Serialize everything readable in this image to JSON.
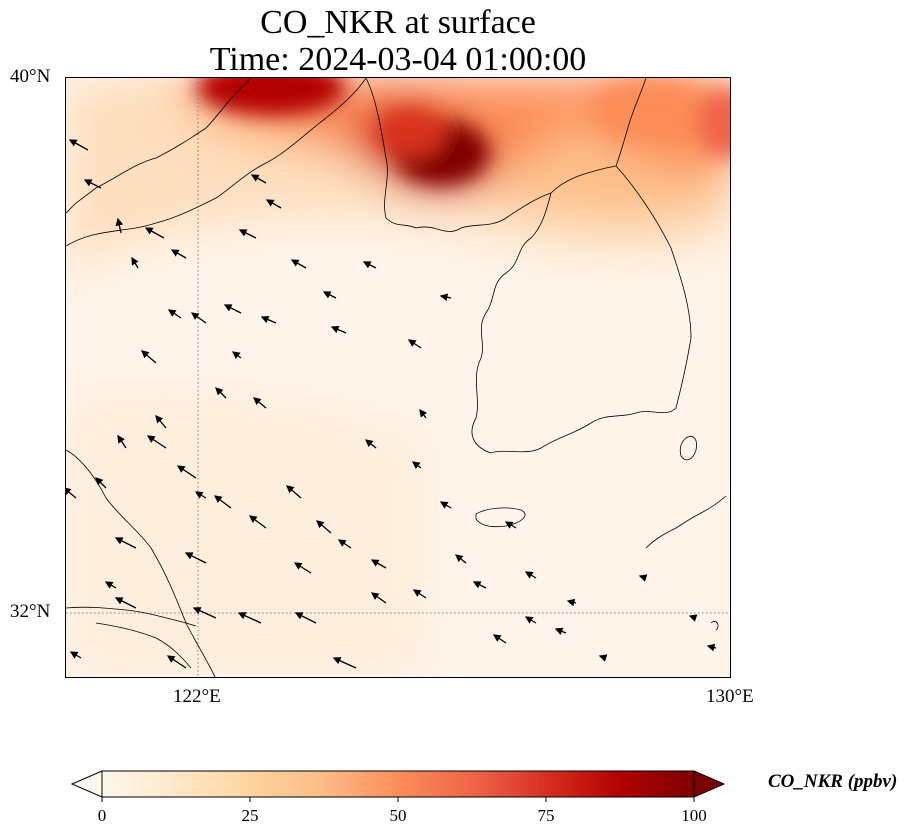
{
  "title": {
    "line1": "CO_NKR at surface",
    "line2": "Time: 2024-03-04 01:00:00"
  },
  "map": {
    "lon_range": [
      120,
      130
    ],
    "lat_range": [
      31,
      40
    ],
    "gridline_style": "dotted",
    "lat_ticks": [
      {
        "value": 40,
        "label": "40°N"
      },
      {
        "value": 32,
        "label": "32°N"
      }
    ],
    "lon_ticks": [
      {
        "value": 122,
        "label": "122°E"
      },
      {
        "value": 130,
        "label": "130°E"
      }
    ],
    "features": [
      "coastline",
      "wind-vectors"
    ],
    "high_concentration_areas": [
      {
        "lon": 123.5,
        "lat": 39.9,
        "value": 100
      },
      {
        "lon": 125.6,
        "lat": 39.0,
        "value": 100
      },
      {
        "lon": 127.8,
        "lat": 39.6,
        "value": 55
      },
      {
        "lon": 129.5,
        "lat": 39.7,
        "value": 50
      }
    ]
  },
  "colorbar": {
    "label": "CO_NKR (ppbv)",
    "min": 0,
    "max": 100,
    "ticks": [
      "0",
      "25",
      "50",
      "75",
      "100"
    ],
    "extend": "both",
    "colormap": "OrRd",
    "colors": [
      "#fff7ec",
      "#fee8c8",
      "#fdd49e",
      "#fdbb84",
      "#fc8d59",
      "#ef6548",
      "#d7301f",
      "#b30000",
      "#7f0000"
    ]
  }
}
